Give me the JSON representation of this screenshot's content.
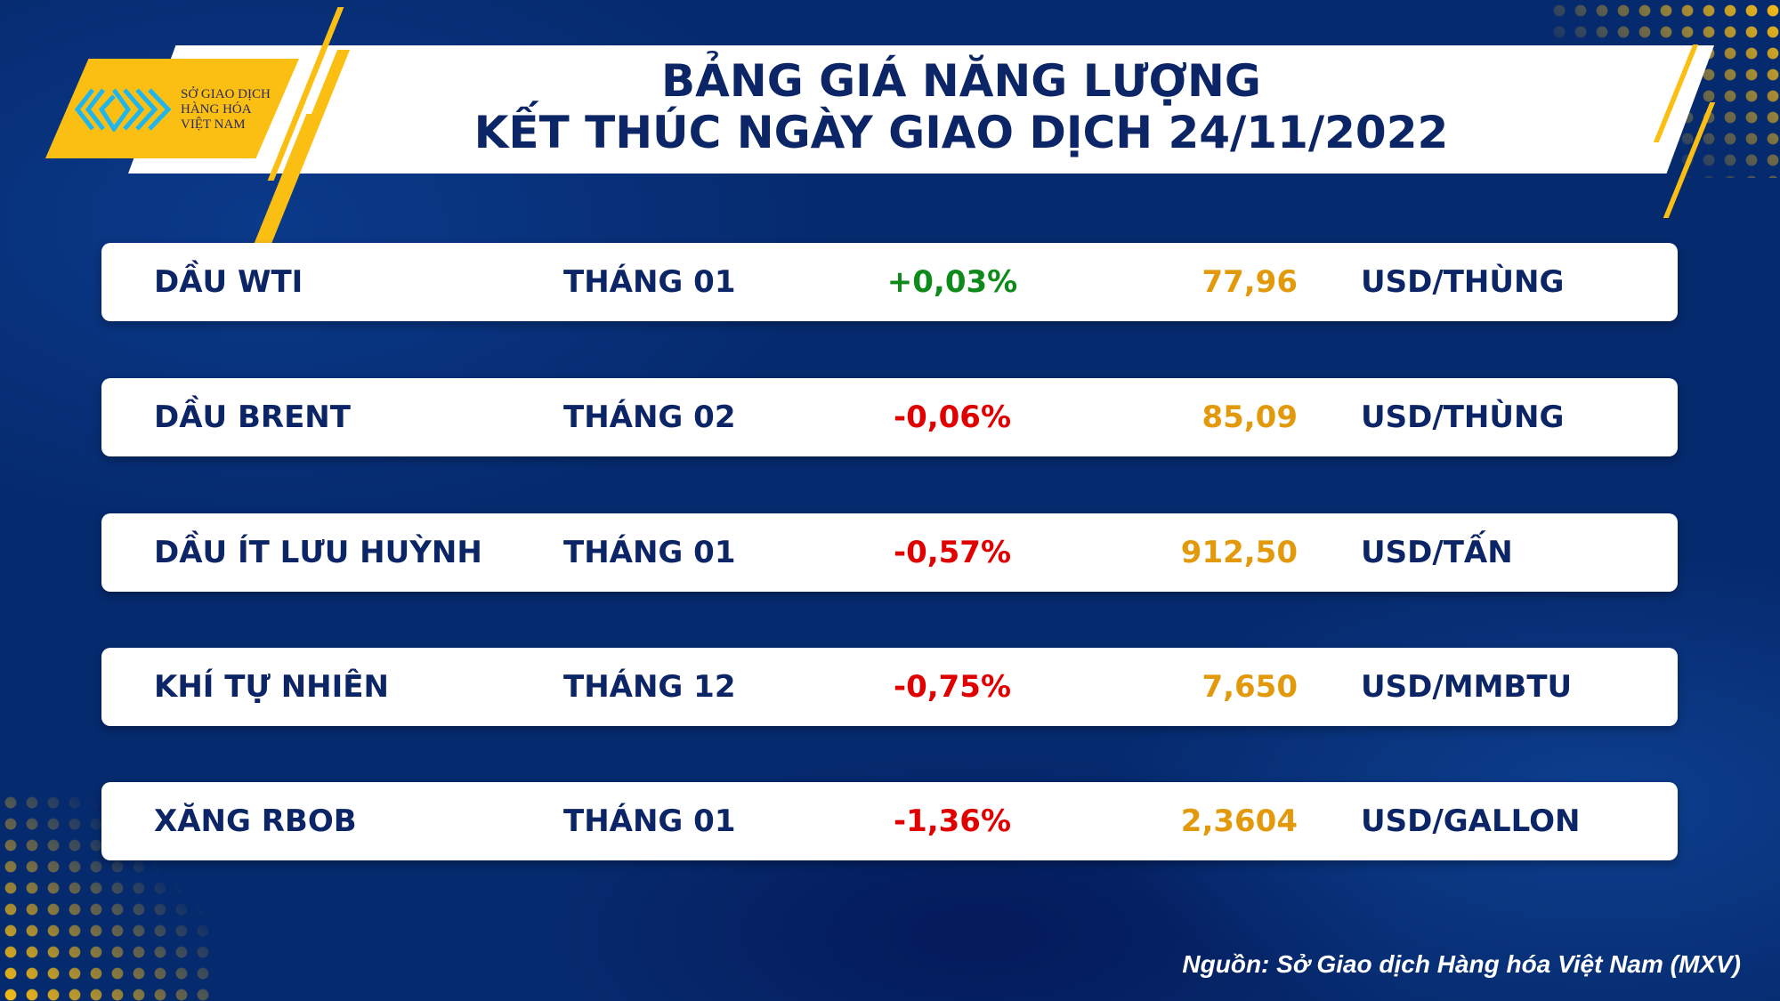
{
  "logo": {
    "lines": [
      "SỞ GIAO DỊCH",
      "HÀNG HÓA",
      "VIỆT NAM"
    ]
  },
  "title": {
    "line1": "BẢNG GIÁ NĂNG LƯỢNG",
    "line2": "KẾT THÚC NGÀY GIAO DỊCH 24/11/2022"
  },
  "rows": [
    {
      "name": "DẦU WTI",
      "month": "THÁNG 01",
      "change": "+0,03%",
      "price": "77,96",
      "unit": "USD/THÙNG"
    },
    {
      "name": "DẦU BRENT",
      "month": "THÁNG 02",
      "change": "-0,06%",
      "price": "85,09",
      "unit": "USD/THÙNG"
    },
    {
      "name": "DẦU ÍT LƯU HUỲNH",
      "month": "THÁNG 01",
      "change": "-0,57%",
      "price": "912,50",
      "unit": "USD/TẤN"
    },
    {
      "name": "KHÍ TỰ NHIÊN",
      "month": "THÁNG 12",
      "change": "-0,75%",
      "price": "7,650",
      "unit": "USD/MMBTU"
    },
    {
      "name": "XĂNG RBOB",
      "month": "THÁNG 01",
      "change": "-1,36%",
      "price": "2,3604",
      "unit": "USD/GALLON"
    }
  ],
  "colors": {
    "up": "#0d8a1a",
    "down": "#e00000",
    "price": "#e29a0c",
    "navy": "#0c2566",
    "accent": "#fbbf14"
  },
  "source": "Nguồn: Sở Giao dịch Hàng hóa Việt Nam (MXV)"
}
